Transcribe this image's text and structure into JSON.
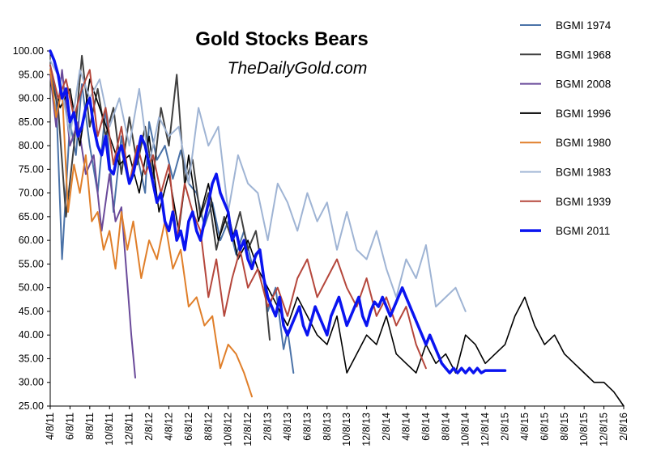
{
  "chart_data": {
    "type": "line",
    "title": "Gold Stocks Bears",
    "subtitle": "TheDailyGold.com",
    "xlabel": "",
    "ylabel": "",
    "ylim": [
      25,
      100
    ],
    "yticks": [
      "25.00",
      "30.00",
      "35.00",
      "40.00",
      "45.00",
      "50.00",
      "55.00",
      "60.00",
      "65.00",
      "70.00",
      "75.00",
      "80.00",
      "85.00",
      "90.00",
      "95.00",
      "100.00"
    ],
    "xticks": [
      "4/8/11",
      "6/8/11",
      "8/8/11",
      "10/8/11",
      "12/8/11",
      "2/8/12",
      "4/8/12",
      "6/8/12",
      "8/8/12",
      "10/8/12",
      "12/8/12",
      "2/8/13",
      "4/8/13",
      "6/8/13",
      "8/8/13",
      "10/8/13",
      "12/8/13",
      "2/8/14",
      "4/8/14",
      "6/8/14",
      "8/8/14",
      "10/8/14",
      "12/8/14",
      "2/8/15",
      "4/8/15",
      "6/8/15",
      "8/8/15",
      "10/8/15",
      "12/8/15",
      "2/8/16"
    ],
    "legend_position": "right",
    "grid": false,
    "series": [
      {
        "name": "BGMI 1974",
        "color": "#4a72a8",
        "width": 2,
        "x": [
          0,
          0.3,
          0.6,
          1,
          1.3,
          1.6,
          2,
          2.4,
          2.8,
          3.2,
          3.6,
          4,
          4.4,
          4.8,
          5,
          5.4,
          5.8,
          6.2,
          6.6,
          7,
          7.4,
          7.8,
          8.2,
          8.6,
          9,
          9.4,
          9.8,
          10.2,
          10.6,
          11,
          11.4,
          11.8,
          12,
          12.3
        ],
        "y": [
          97,
          90,
          56,
          85,
          78,
          93,
          80,
          70,
          88,
          66,
          82,
          72,
          78,
          70,
          85,
          77,
          80,
          73,
          79,
          72,
          70,
          63,
          68,
          60,
          64,
          57,
          62,
          55,
          58,
          45,
          50,
          37,
          41,
          32
        ]
      },
      {
        "name": "BGMI 1968",
        "color": "#404040",
        "width": 2,
        "x": [
          0,
          0.4,
          0.8,
          1.2,
          1.6,
          2,
          2.4,
          2.8,
          3.2,
          3.6,
          4,
          4.4,
          4.8,
          5.2,
          5.6,
          6,
          6.4,
          6.8,
          7.2,
          7.6,
          8,
          8.4,
          8.8,
          9.2,
          9.6,
          10,
          10.4,
          10.8,
          11.1
        ],
        "y": [
          95,
          88,
          65,
          80,
          99,
          84,
          92,
          82,
          88,
          74,
          86,
          76,
          84,
          73,
          88,
          80,
          95,
          72,
          77,
          65,
          70,
          58,
          65,
          60,
          66,
          58,
          62,
          52,
          39
        ]
      },
      {
        "name": "BGMI 2008",
        "color": "#6a4a9a",
        "width": 2,
        "x": [
          0,
          0.3,
          0.6,
          1,
          1.4,
          1.8,
          2.2,
          2.6,
          3,
          3.3,
          3.6,
          3.9,
          4.1,
          4.3
        ],
        "y": [
          95,
          84,
          96,
          80,
          85,
          74,
          78,
          62,
          74,
          64,
          67,
          51,
          40,
          31
        ]
      },
      {
        "name": "BGMI 1996",
        "color": "#000000",
        "width": 1.6,
        "x": [
          0,
          0.5,
          1,
          1.5,
          2,
          2.5,
          3,
          3.5,
          4,
          4.5,
          5,
          5.5,
          6,
          6.5,
          7,
          7.5,
          8,
          8.5,
          9,
          9.5,
          10,
          10.5,
          11,
          11.5,
          12,
          12.5,
          13,
          13.5,
          14,
          14.5,
          15,
          15.5,
          16,
          16.5,
          17,
          17.5,
          18,
          18.5,
          19,
          19.5,
          20,
          20.5,
          21,
          21.5,
          22,
          22.5,
          23,
          23.5,
          24,
          24.5,
          25,
          25.5,
          26,
          26.5,
          27,
          27.5,
          28,
          28.5,
          29
        ],
        "y": [
          97,
          88,
          92,
          80,
          94,
          88,
          82,
          76,
          78,
          70,
          82,
          66,
          74,
          62,
          78,
          64,
          72,
          60,
          66,
          56,
          60,
          54,
          50,
          46,
          42,
          48,
          44,
          40,
          38,
          44,
          32,
          36,
          40,
          38,
          44,
          36,
          34,
          32,
          38,
          34,
          36,
          32,
          40,
          38,
          34,
          36,
          38,
          44,
          48,
          42,
          38,
          40,
          36,
          34,
          32,
          30,
          30,
          28,
          25
        ]
      },
      {
        "name": "BGMI 1980",
        "color": "#e07f2a",
        "width": 2,
        "x": [
          0,
          0.3,
          0.6,
          0.9,
          1.2,
          1.5,
          1.8,
          2.1,
          2.4,
          2.7,
          3,
          3.3,
          3.6,
          3.9,
          4.2,
          4.6,
          5,
          5.4,
          5.8,
          6.2,
          6.6,
          7,
          7.4,
          7.8,
          8.2,
          8.6,
          9,
          9.4,
          9.8,
          10.2
        ],
        "y": [
          96,
          86,
          92,
          66,
          76,
          70,
          78,
          64,
          66,
          58,
          62,
          54,
          66,
          58,
          64,
          52,
          60,
          56,
          64,
          54,
          58,
          46,
          48,
          42,
          44,
          33,
          38,
          36,
          32,
          27
        ]
      },
      {
        "name": "BGMI 1983",
        "color": "#9fb4d4",
        "width": 2,
        "x": [
          0,
          0.5,
          1,
          1.5,
          2,
          2.5,
          3,
          3.5,
          4,
          4.5,
          5,
          5.5,
          6,
          6.5,
          7,
          7.5,
          8,
          8.5,
          9,
          9.5,
          10,
          10.5,
          11,
          11.5,
          12,
          12.5,
          13,
          13.5,
          14,
          14.5,
          15,
          15.5,
          16,
          16.5,
          17,
          17.5,
          18,
          18.5,
          19,
          19.5,
          20,
          20.5,
          21
        ],
        "y": [
          98,
          94,
          82,
          96,
          90,
          94,
          84,
          90,
          80,
          92,
          76,
          86,
          82,
          84,
          72,
          88,
          80,
          84,
          66,
          78,
          72,
          70,
          60,
          72,
          68,
          62,
          70,
          64,
          68,
          58,
          66,
          58,
          56,
          62,
          54,
          48,
          56,
          52,
          59,
          46,
          48,
          50,
          45
        ]
      },
      {
        "name": "BGMI 1939",
        "color": "#b5473c",
        "width": 2,
        "x": [
          0,
          0.4,
          0.8,
          1.2,
          1.6,
          2,
          2.4,
          2.8,
          3.2,
          3.6,
          4,
          4.4,
          4.8,
          5.2,
          5.6,
          6,
          6.4,
          6.8,
          7.2,
          7.6,
          8,
          8.4,
          8.8,
          9.2,
          9.6,
          10,
          10.5,
          11,
          11.5,
          12,
          12.5,
          13,
          13.5,
          14,
          14.5,
          15,
          15.5,
          16,
          16.5,
          17,
          17.5,
          18,
          18.5,
          19
        ],
        "y": [
          97,
          90,
          94,
          86,
          92,
          96,
          82,
          88,
          76,
          84,
          72,
          80,
          74,
          78,
          70,
          76,
          60,
          72,
          66,
          62,
          48,
          56,
          44,
          52,
          58,
          50,
          54,
          46,
          50,
          44,
          52,
          56,
          48,
          52,
          56,
          50,
          46,
          52,
          44,
          48,
          42,
          46,
          38,
          33
        ]
      },
      {
        "name": "BGMI 2011",
        "color": "#0a14f0",
        "width": 3.5,
        "x": [
          0,
          0.2,
          0.4,
          0.6,
          0.8,
          1,
          1.2,
          1.4,
          1.6,
          1.8,
          2,
          2.2,
          2.4,
          2.6,
          2.8,
          3,
          3.2,
          3.4,
          3.6,
          3.8,
          4,
          4.2,
          4.4,
          4.6,
          4.8,
          5,
          5.2,
          5.4,
          5.6,
          5.8,
          6,
          6.2,
          6.4,
          6.6,
          6.8,
          7,
          7.2,
          7.4,
          7.6,
          7.8,
          8,
          8.2,
          8.4,
          8.6,
          8.8,
          9,
          9.2,
          9.4,
          9.6,
          9.8,
          10,
          10.2,
          10.4,
          10.6,
          10.8,
          11,
          11.2,
          11.4,
          11.6,
          11.8,
          12,
          12.2,
          12.4,
          12.6,
          12.8,
          13,
          13.2,
          13.4,
          13.6,
          13.8,
          14,
          14.2,
          14.4,
          14.6,
          14.8,
          15,
          15.2,
          15.4,
          15.6,
          15.8,
          16,
          16.2,
          16.4,
          16.6,
          16.8,
          17,
          17.2,
          17.4,
          17.6,
          17.8,
          18,
          18.2,
          18.4,
          18.6,
          18.8,
          19,
          19.2,
          19.4,
          19.6,
          19.8,
          20,
          20.2,
          20.4,
          20.6,
          20.8,
          21,
          21.2,
          21.4,
          21.6,
          21.8,
          22,
          22.2,
          22.4,
          22.6,
          22.8,
          23
        ],
        "y": [
          100,
          98,
          95,
          90,
          92,
          85,
          87,
          82,
          84,
          88,
          90,
          84,
          80,
          78,
          82,
          75,
          74,
          78,
          80,
          76,
          72,
          74,
          78,
          82,
          80,
          76,
          72,
          68,
          70,
          64,
          62,
          66,
          60,
          62,
          58,
          64,
          66,
          62,
          60,
          64,
          68,
          72,
          74,
          70,
          68,
          66,
          60,
          62,
          58,
          60,
          56,
          54,
          57,
          58,
          52,
          48,
          46,
          44,
          48,
          42,
          40,
          42,
          44,
          46,
          42,
          40,
          43,
          46,
          44,
          42,
          40,
          44,
          46,
          48,
          45,
          42,
          44,
          46,
          48,
          44,
          42,
          45,
          47,
          46,
          48,
          46,
          44,
          46,
          48,
          50,
          48,
          46,
          44,
          42,
          40,
          38,
          40,
          38,
          36,
          34,
          33,
          32,
          33,
          32,
          33,
          32,
          33,
          32,
          33,
          32,
          32.5,
          32.5,
          32.5,
          32.5,
          32.5,
          32.5
        ]
      }
    ]
  }
}
